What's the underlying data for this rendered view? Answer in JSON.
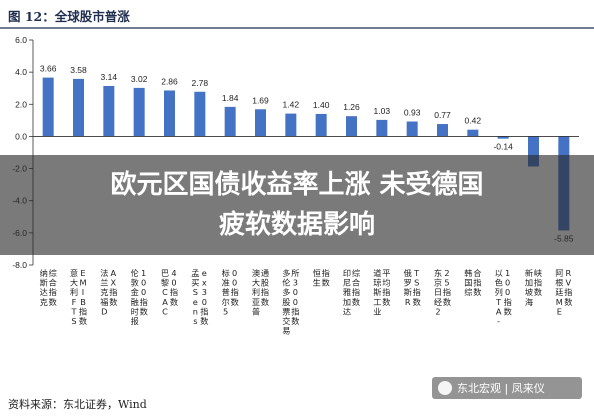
{
  "figure": {
    "title": "图 12：全球股市普涨",
    "source": "资料来源：东北证券，Wind"
  },
  "headline": {
    "line1": "欧元区国债收益率上涨 未受德国",
    "line2": "疲软数据影响"
  },
  "watermark": {
    "text": "东北宏观 | 凤来仪"
  },
  "chart_data": {
    "type": "bar",
    "title": "全球股市普涨",
    "categories": [
      "纳斯达克综合指数",
      "意大利FTSEMIB指数",
      "法兰克福DAX指数",
      "伦敦金融时报100指数",
      "巴黎CAC40指数",
      "孟买Sensex30指数",
      "标准普尔500指数",
      "澳大利亚普通股指数",
      "多伦多股票交易所300指数",
      "恒生指数",
      "印尼雅加达综合指数",
      "道琼斯工业平均指数",
      "俄罗斯RTS指数",
      "东京日经225指数",
      "韩国综合指数",
      "以色列TA-100指数",
      "新加坡海峡指数",
      "阿根廷MERV指数"
    ],
    "values": [
      3.66,
      3.58,
      3.14,
      3.02,
      2.86,
      2.78,
      1.84,
      1.69,
      1.42,
      1.4,
      1.26,
      1.03,
      0.93,
      0.77,
      0.42,
      -0.14,
      -1.87,
      -5.85
    ],
    "data_labels": [
      "3.66",
      "3.58",
      "3.14",
      "3.02",
      "2.86",
      "2.78",
      "1.84",
      "1.69",
      "1.42",
      "1.40",
      "1.26",
      "1.03",
      "0.93",
      "0.77",
      "0.42",
      "-0.14",
      "",
      "-5.85"
    ],
    "yticks": [
      "6.0",
      "4.0",
      "2.0",
      "0.0",
      "-2.0",
      "-4.0",
      "-6.0",
      "-8.0"
    ],
    "ylim": [
      -8,
      6
    ],
    "grid": false,
    "bar_color": "#4472c4"
  }
}
